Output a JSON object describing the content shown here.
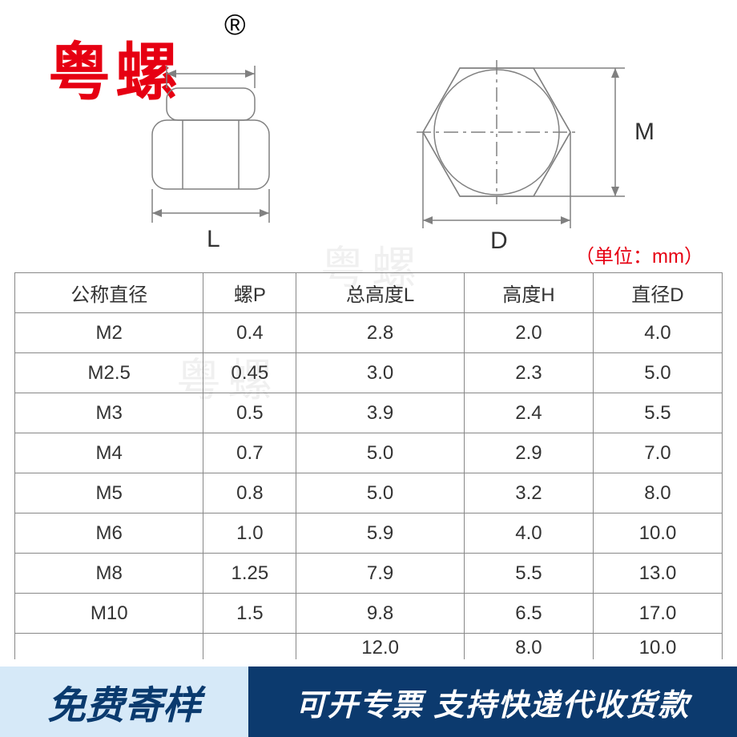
{
  "brand": {
    "name": "粤螺",
    "reg_mark": "®"
  },
  "diagram": {
    "side_view_label": "L",
    "top_view_label_d": "D",
    "top_view_label_m": "M",
    "stroke_color": "#808080",
    "stroke_width": 1.5
  },
  "unit_note": "（单位：mm）",
  "watermark_text": "粤螺",
  "table": {
    "columns": [
      "公称直径",
      "螺P",
      "总高度L",
      "高度H",
      "直径D"
    ],
    "rows": [
      [
        "M2",
        "0.4",
        "2.8",
        "2.0",
        "4.0"
      ],
      [
        "M2.5",
        "0.45",
        "3.0",
        "2.3",
        "5.0"
      ],
      [
        "M3",
        "0.5",
        "3.9",
        "2.4",
        "5.5"
      ],
      [
        "M4",
        "0.7",
        "5.0",
        "2.9",
        "7.0"
      ],
      [
        "M5",
        "0.8",
        "5.0",
        "3.2",
        "8.0"
      ],
      [
        "M6",
        "1.0",
        "5.9",
        "4.0",
        "10.0"
      ],
      [
        "M8",
        "1.25",
        "7.9",
        "5.5",
        "13.0"
      ],
      [
        "M10",
        "1.5",
        "9.8",
        "6.5",
        "17.0"
      ]
    ],
    "partial_row": [
      "",
      "",
      "12.0",
      "8.0",
      "10.0"
    ],
    "border_color": "#888888",
    "font_size": 24,
    "text_color": "#333333"
  },
  "footer": {
    "left_text": "免费寄样",
    "right_text": "可开专票 支持快递代收货款",
    "left_bg": "#d6e9f8",
    "left_color": "#0a3a6e",
    "right_bg": "#0c3a6e",
    "right_color": "#ffffff"
  }
}
